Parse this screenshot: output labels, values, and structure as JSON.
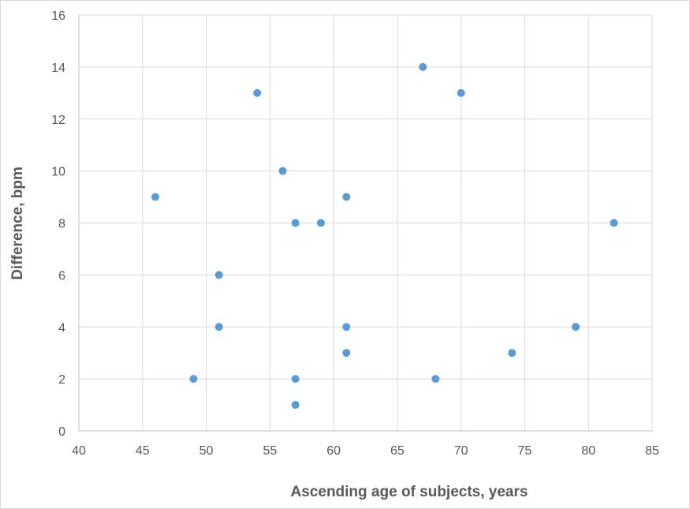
{
  "chart_data": {
    "type": "scatter",
    "title": "",
    "xlabel": "Ascending age of subjects, years",
    "ylabel": "Difference, bpm",
    "xlim": [
      40,
      85
    ],
    "ylim": [
      0,
      16
    ],
    "x_ticks": [
      "40",
      "45",
      "50",
      "55",
      "60",
      "65",
      "70",
      "75",
      "80",
      "85"
    ],
    "y_ticks": [
      "0",
      "2",
      "4",
      "6",
      "8",
      "10",
      "12",
      "14",
      "16"
    ],
    "grid": true,
    "legend": "none",
    "series": [
      {
        "color": "#5b9bd5",
        "points": [
          {
            "x": 46,
            "y": 9
          },
          {
            "x": 49,
            "y": 2
          },
          {
            "x": 51,
            "y": 6
          },
          {
            "x": 51,
            "y": 4
          },
          {
            "x": 54,
            "y": 13
          },
          {
            "x": 56,
            "y": 10
          },
          {
            "x": 57,
            "y": 8
          },
          {
            "x": 57,
            "y": 2
          },
          {
            "x": 57,
            "y": 1
          },
          {
            "x": 59,
            "y": 8
          },
          {
            "x": 61,
            "y": 9
          },
          {
            "x": 61,
            "y": 4
          },
          {
            "x": 61,
            "y": 3
          },
          {
            "x": 67,
            "y": 14
          },
          {
            "x": 68,
            "y": 2
          },
          {
            "x": 70,
            "y": 13
          },
          {
            "x": 74,
            "y": 3
          },
          {
            "x": 79,
            "y": 4
          },
          {
            "x": 82,
            "y": 8
          }
        ]
      }
    ]
  }
}
